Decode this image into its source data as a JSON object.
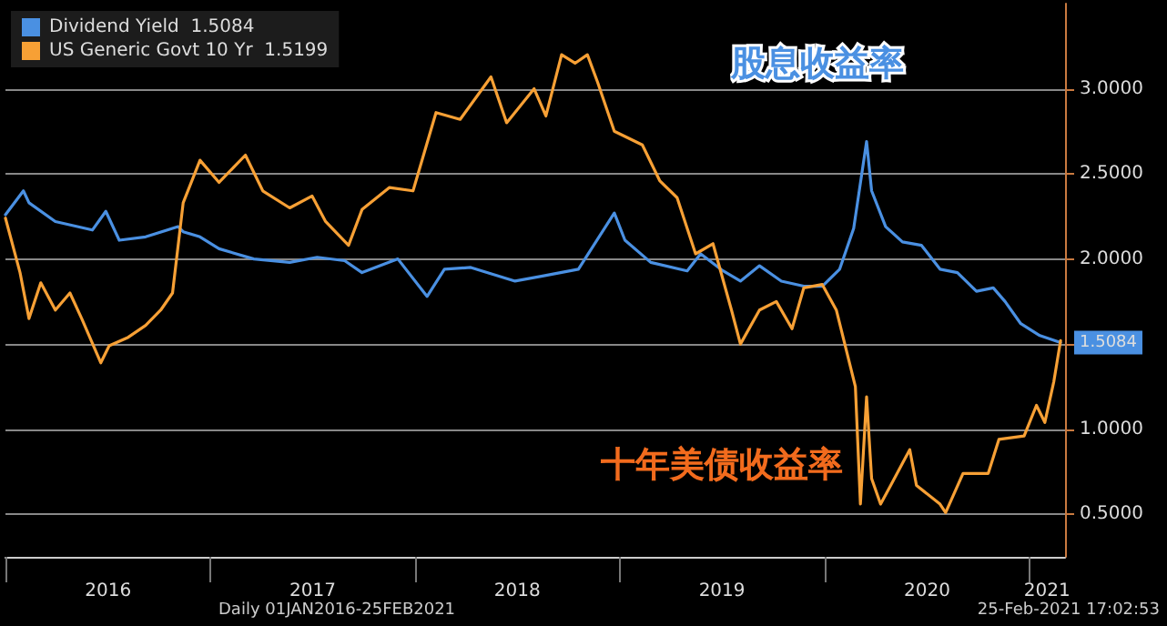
{
  "chart_data": {
    "type": "line",
    "xlim": [
      "2016-01-01",
      "2021-03-05"
    ],
    "xticks": [
      {
        "value": "2016-01-01",
        "label": null
      },
      {
        "value": "2016-07-02",
        "label": "2016"
      },
      {
        "value": "2017-01-01",
        "label": null
      },
      {
        "value": "2017-07-02",
        "label": "2017"
      },
      {
        "value": "2018-01-01",
        "label": null
      },
      {
        "value": "2018-07-02",
        "label": "2018"
      },
      {
        "value": "2019-01-01",
        "label": null
      },
      {
        "value": "2019-07-02",
        "label": "2019"
      },
      {
        "value": "2020-01-01",
        "label": null
      },
      {
        "value": "2020-07-02",
        "label": "2020"
      },
      {
        "value": "2021-01-01",
        "label": null
      },
      {
        "value": "2021-02-01",
        "label": "2021"
      }
    ],
    "ylim": [
      0.25,
      3.5
    ],
    "yticks": [
      {
        "value": 0.5,
        "label": "0.5000"
      },
      {
        "value": 1,
        "label": "1.0000"
      },
      {
        "value": 1.5,
        "label": null
      },
      {
        "value": 2,
        "label": "2.0000"
      },
      {
        "value": 2.5,
        "label": "2.5000"
      },
      {
        "value": 3,
        "label": "3.0000"
      }
    ],
    "grid": "y",
    "legend": "top left",
    "series": [
      {
        "name": "Dividend Yield  1.5084",
        "color": "#4a90e2",
        "x": [
          "2016-01-01",
          "2016-02-02",
          "2016-02-12",
          "2016-03-30",
          "2016-06-04",
          "2016-06-28",
          "2016-07-22",
          "2016-09-07",
          "2016-11-04",
          "2016-11-13",
          "2016-12-13",
          "2017-01-16",
          "2017-03-19",
          "2017-05-22",
          "2017-07-10",
          "2017-08-28",
          "2017-09-28",
          "2017-12-01",
          "2018-01-22",
          "2018-02-22",
          "2018-04-10",
          "2018-06-28",
          "2018-08-16",
          "2018-10-19",
          "2018-12-22",
          "2019-01-10",
          "2019-02-25",
          "2019-05-01",
          "2019-05-25",
          "2019-07-04",
          "2019-08-04",
          "2019-09-07",
          "2019-10-16",
          "2019-11-25",
          "2019-12-28",
          "2020-01-28",
          "2020-02-22",
          "2020-03-16",
          "2020-03-25",
          "2020-04-19",
          "2020-05-19",
          "2020-06-22",
          "2020-07-25",
          "2020-08-25",
          "2020-09-28",
          "2020-10-28",
          "2020-11-18",
          "2020-12-16",
          "2021-01-19",
          "2021-02-25"
        ],
        "values": [
          2.26,
          2.4,
          2.33,
          2.22,
          2.17,
          2.28,
          2.11,
          2.13,
          2.19,
          2.16,
          2.13,
          2.06,
          2.0,
          1.98,
          2.01,
          1.99,
          1.92,
          2.0,
          1.78,
          1.94,
          1.95,
          1.87,
          1.9,
          1.94,
          2.27,
          2.11,
          1.98,
          1.93,
          2.03,
          1.93,
          1.87,
          1.96,
          1.87,
          1.84,
          1.84,
          1.94,
          2.18,
          2.69,
          2.4,
          2.19,
          2.1,
          2.08,
          1.94,
          1.92,
          1.81,
          1.83,
          1.75,
          1.62,
          1.55,
          1.5084
        ]
      },
      {
        "name": "US Generic Govt 10 Yr  1.5199",
        "color": "#f7a035",
        "x": [
          "2016-01-01",
          "2016-01-27",
          "2016-02-12",
          "2016-03-04",
          "2016-03-30",
          "2016-04-25",
          "2016-05-16",
          "2016-06-19",
          "2016-07-04",
          "2016-08-07",
          "2016-09-07",
          "2016-10-04",
          "2016-10-25",
          "2016-11-13",
          "2016-12-13",
          "2017-01-16",
          "2017-03-04",
          "2017-04-04",
          "2017-05-22",
          "2017-07-01",
          "2017-07-25",
          "2017-09-04",
          "2017-09-28",
          "2017-11-16",
          "2017-12-28",
          "2018-02-07",
          "2018-03-22",
          "2018-05-16",
          "2018-06-13",
          "2018-08-01",
          "2018-08-22",
          "2018-09-19",
          "2018-10-13",
          "2018-11-04",
          "2018-11-22",
          "2018-12-22",
          "2019-02-10",
          "2019-03-13",
          "2019-04-13",
          "2019-05-16",
          "2019-06-16",
          "2019-07-19",
          "2019-08-04",
          "2019-09-07",
          "2019-10-07",
          "2019-11-04",
          "2019-11-25",
          "2019-12-28",
          "2020-01-22",
          "2020-02-25",
          "2020-03-05",
          "2020-03-16",
          "2020-03-25",
          "2020-04-10",
          "2020-04-28",
          "2020-06-01",
          "2020-06-13",
          "2020-07-25",
          "2020-08-04",
          "2020-09-04",
          "2020-10-19",
          "2020-11-07",
          "2020-12-22",
          "2021-01-13",
          "2021-01-28",
          "2021-02-13",
          "2021-02-25"
        ],
        "values": [
          2.24,
          1.92,
          1.65,
          1.86,
          1.7,
          1.8,
          1.65,
          1.39,
          1.49,
          1.54,
          1.61,
          1.7,
          1.8,
          2.33,
          2.58,
          2.45,
          2.61,
          2.4,
          2.3,
          2.37,
          2.22,
          2.08,
          2.29,
          2.42,
          2.4,
          2.86,
          2.82,
          3.07,
          2.8,
          3.0,
          2.84,
          3.2,
          3.15,
          3.2,
          3.04,
          2.75,
          2.67,
          2.46,
          2.36,
          2.03,
          2.09,
          1.7,
          1.5,
          1.7,
          1.75,
          1.59,
          1.83,
          1.85,
          1.7,
          1.25,
          0.56,
          1.19,
          0.71,
          0.56,
          0.67,
          0.88,
          0.67,
          0.56,
          0.51,
          0.74,
          0.74,
          0.94,
          0.96,
          1.14,
          1.04,
          1.28,
          1.5199
        ]
      }
    ],
    "annotations": [
      "股息收益率",
      "十年美债收益率",
      {
        "text": "1.5084",
        "x": "2021-02-25",
        "y": 1.5084
      },
      "Daily 01JAN2016-25FEB2021",
      "25-Feb-2021 17:02:53"
    ]
  }
}
